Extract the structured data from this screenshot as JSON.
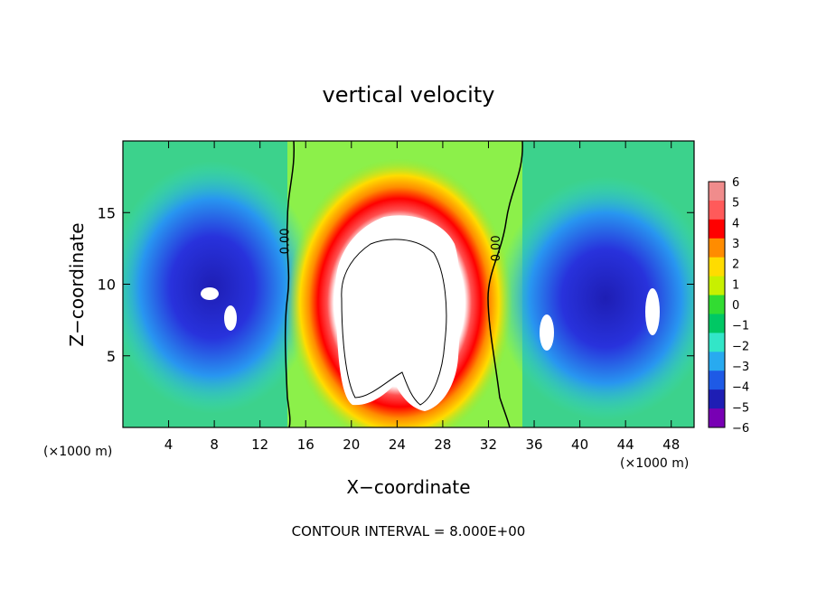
{
  "chart_data": {
    "type": "heatmap",
    "title": "vertical velocity",
    "xlabel": "X−coordinate",
    "ylabel": "Z−coordinate",
    "x_unit_left": "(×1000 m)",
    "x_unit_right": "(×1000 m)",
    "xlim": [
      0,
      50
    ],
    "ylim": [
      0,
      20
    ],
    "x_ticks": [
      4,
      8,
      12,
      16,
      20,
      24,
      28,
      32,
      36,
      40,
      44,
      48
    ],
    "x_tick_labels": [
      "4",
      "8",
      "12",
      "16",
      "20",
      "24",
      "28",
      "32",
      "36",
      "40",
      "44",
      "48"
    ],
    "y_ticks": [
      5,
      10,
      15
    ],
    "y_tick_labels": [
      "5",
      "10",
      "15"
    ],
    "colorbar": {
      "min": -6,
      "max": 6,
      "labels": [
        "6",
        "5",
        "4",
        "3",
        "2",
        "1",
        "0",
        "−1",
        "−2",
        "−3",
        "−4",
        "−5",
        "−6"
      ]
    },
    "contour_labels": [
      {
        "text": "0.00",
        "x": 14.5,
        "y": 13
      },
      {
        "text": "0.00",
        "x": 33,
        "y": 12.5
      }
    ],
    "footer": "CONTOUR INTERVAL = 8.000E+00"
  }
}
